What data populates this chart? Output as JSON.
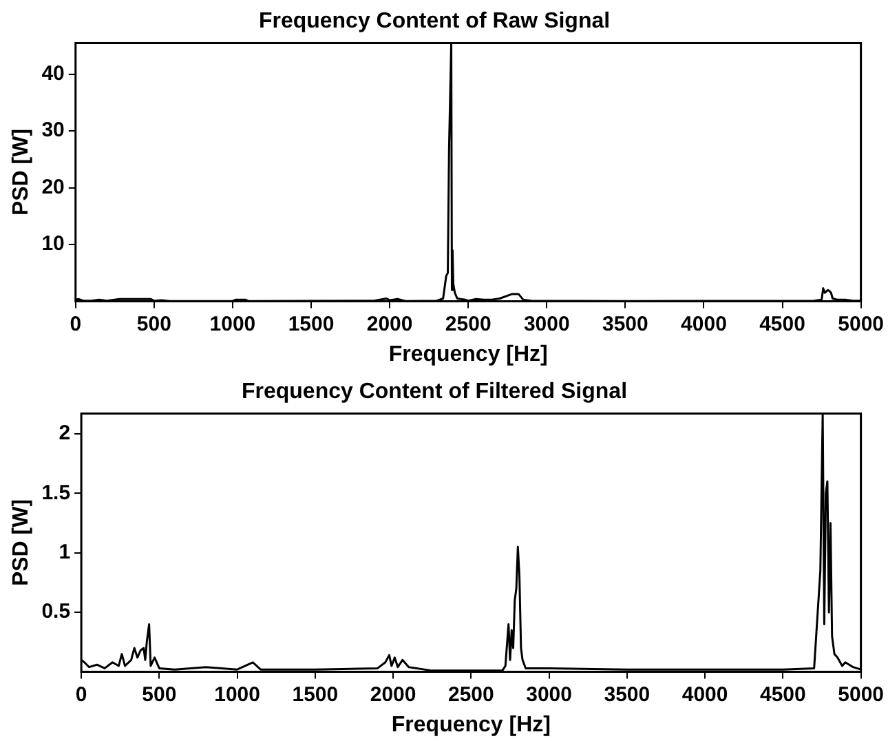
{
  "chart_data": [
    {
      "type": "line",
      "title": "Frequency Content of Raw Signal",
      "xlabel": "Frequency [Hz]",
      "ylabel": "PSD [W]",
      "xlim": [
        0,
        5000
      ],
      "xticks": [
        0,
        500,
        1000,
        1500,
        2000,
        2500,
        3000,
        3500,
        4000,
        4500,
        5000
      ],
      "ylim": [
        0,
        45.5
      ],
      "yticks": [
        10,
        20,
        30,
        40
      ],
      "grid": false,
      "legend": false,
      "marker": "none",
      "line_style": "solid",
      "series": [
        {
          "color": "#000000",
          "x": [
            0,
            20,
            50,
            100,
            150,
            200,
            280,
            300,
            480,
            500,
            550,
            600,
            1000,
            1020,
            1080,
            1100,
            1900,
            1980,
            2000,
            2050,
            2100,
            2300,
            2340,
            2360,
            2370,
            2378,
            2385,
            2392,
            2396,
            2400,
            2405,
            2415,
            2430,
            2480,
            2500,
            2550,
            2600,
            2650,
            2700,
            2750,
            2780,
            2820,
            2850,
            2900,
            3500,
            4700,
            4750,
            4760,
            4770,
            4790,
            4800,
            4810,
            4820,
            4850,
            4900,
            4950,
            5000
          ],
          "values": [
            0.3,
            0.4,
            0.1,
            0.1,
            0.3,
            0.1,
            0.4,
            0.4,
            0.4,
            0.1,
            0.2,
            0.05,
            0.05,
            0.3,
            0.3,
            0.05,
            0.1,
            0.5,
            0.2,
            0.4,
            0.05,
            0.1,
            0.5,
            4.5,
            5,
            27,
            27,
            45.5,
            2,
            9,
            3,
            1.5,
            0.5,
            0.3,
            0.1,
            0.4,
            0.3,
            0.3,
            0.5,
            1,
            1.3,
            1.3,
            0.3,
            0.1,
            0.05,
            0.1,
            0.3,
            2.3,
            1.5,
            2,
            1.8,
            1.5,
            0.5,
            0.3,
            0.3,
            0.1,
            0.1
          ]
        }
      ]
    },
    {
      "type": "line",
      "title": "Frequency Content of Filtered Signal",
      "xlabel": "Frequency [Hz]",
      "ylabel": "PSD [W]",
      "xlim": [
        0,
        5000
      ],
      "xticks": [
        0,
        500,
        1000,
        1500,
        2000,
        2500,
        3000,
        3500,
        4000,
        4500,
        5000
      ],
      "ylim": [
        0,
        2.17
      ],
      "yticks": [
        0.5,
        1,
        1.5,
        2
      ],
      "grid": false,
      "legend": false,
      "marker": "none",
      "line_style": "solid",
      "series": [
        {
          "color": "#000000",
          "x": [
            0,
            20,
            50,
            100,
            150,
            200,
            240,
            260,
            280,
            320,
            340,
            360,
            380,
            400,
            410,
            420,
            435,
            445,
            470,
            500,
            600,
            800,
            1000,
            1100,
            1150,
            1500,
            1900,
            1950,
            1975,
            1990,
            2010,
            2030,
            2060,
            2100,
            2200,
            2250,
            2700,
            2720,
            2740,
            2750,
            2760,
            2770,
            2780,
            2790,
            2800,
            2810,
            2820,
            2830,
            2850,
            3000,
            3500,
            4000,
            4500,
            4700,
            4740,
            4755,
            4765,
            4775,
            4785,
            4795,
            4805,
            4815,
            4830,
            4850,
            4880,
            4900,
            4950,
            5000
          ],
          "values": [
            0.1,
            0.08,
            0.04,
            0.06,
            0.03,
            0.08,
            0.05,
            0.15,
            0.05,
            0.1,
            0.2,
            0.12,
            0.18,
            0.2,
            0.1,
            0.25,
            0.4,
            0.05,
            0.12,
            0.03,
            0.02,
            0.04,
            0.02,
            0.08,
            0.02,
            0.02,
            0.03,
            0.08,
            0.14,
            0.05,
            0.12,
            0.04,
            0.1,
            0.04,
            0.02,
            0.01,
            0.01,
            0.05,
            0.4,
            0.1,
            0.35,
            0.2,
            0.6,
            0.7,
            1.05,
            0.8,
            0.2,
            0.1,
            0.03,
            0.03,
            0.02,
            0.02,
            0.02,
            0.03,
            0.85,
            2.17,
            0.4,
            1.5,
            1.6,
            0.5,
            1.25,
            0.3,
            0.15,
            0.12,
            0.05,
            0.08,
            0.04,
            0.02
          ]
        }
      ]
    }
  ]
}
